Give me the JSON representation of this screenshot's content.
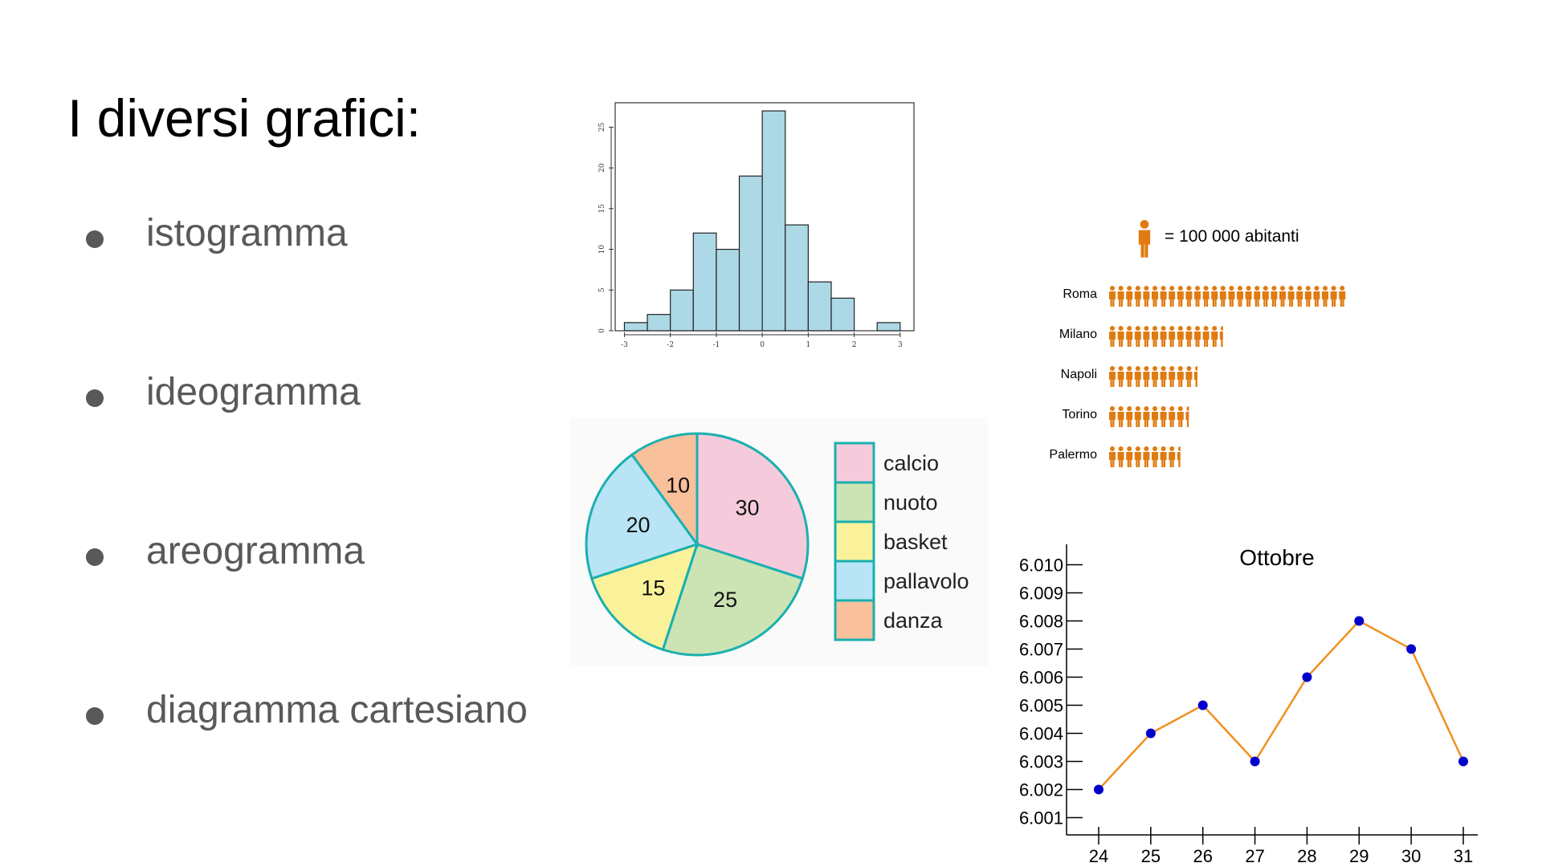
{
  "slide": {
    "title": "I diversi grafici:",
    "bullets": [
      {
        "label": "istogramma"
      },
      {
        "label": "ideogramma"
      },
      {
        "label": "areogramma"
      },
      {
        "label": "diagramma cartesiano"
      }
    ]
  },
  "chart_data": [
    {
      "type": "bar",
      "name": "histogram",
      "bin_edges": [
        -3,
        -2.5,
        -2,
        -1.5,
        -1,
        -0.5,
        0,
        0.5,
        1,
        1.5,
        2,
        2.5,
        3
      ],
      "values": [
        1,
        2,
        5,
        12,
        10,
        19,
        27,
        13,
        6,
        4,
        0,
        1
      ],
      "x_ticks": [
        "-3",
        "-2",
        "-1",
        "0",
        "1",
        "2",
        "3"
      ],
      "y_ticks": [
        "0",
        "5",
        "10",
        "15",
        "20",
        "25"
      ],
      "xlim": [
        -3.2,
        3.3
      ],
      "ylim": [
        0,
        28
      ],
      "color": "#add8e6",
      "title": "",
      "xlabel": "",
      "ylabel": ""
    },
    {
      "type": "bar",
      "name": "pictogram",
      "legend_text": "= 100 000 abitanti",
      "categories": [
        "Roma",
        "Milano",
        "Napoli",
        "Torino",
        "Palermo"
      ],
      "values": [
        28,
        13.5,
        10.5,
        9.5,
        8.5
      ],
      "unit_value": 100000,
      "color": "#e07b12"
    },
    {
      "type": "pie",
      "name": "pie-chart",
      "categories": [
        "calcio",
        "nuoto",
        "basket",
        "pallavolo",
        "danza"
      ],
      "values": [
        30,
        25,
        15,
        20,
        10
      ],
      "colors": [
        "#f5cbdc",
        "#cce3b4",
        "#faf29a",
        "#b9e4f5",
        "#f8c09b"
      ],
      "edge_color": "#1ab0b0",
      "title": ""
    },
    {
      "type": "line",
      "name": "line-chart",
      "title": "Ottobre",
      "x": [
        24,
        25,
        26,
        27,
        28,
        29,
        30,
        31
      ],
      "y": [
        6.002,
        6.004,
        6.005,
        6.003,
        6.006,
        6.008,
        6.007,
        6.003
      ],
      "x_ticks": [
        "24",
        "25",
        "26",
        "27",
        "28",
        "29",
        "30",
        "31"
      ],
      "y_ticks": [
        "6.001",
        "6.002",
        "6.003",
        "6.004",
        "6.005",
        "6.006",
        "6.007",
        "6.008",
        "6.009",
        "6.010"
      ],
      "ylim": [
        6.0,
        6.0105
      ],
      "line_color": "#f0901e",
      "marker_color": "#0000cc",
      "xlabel": "",
      "ylabel": ""
    }
  ]
}
